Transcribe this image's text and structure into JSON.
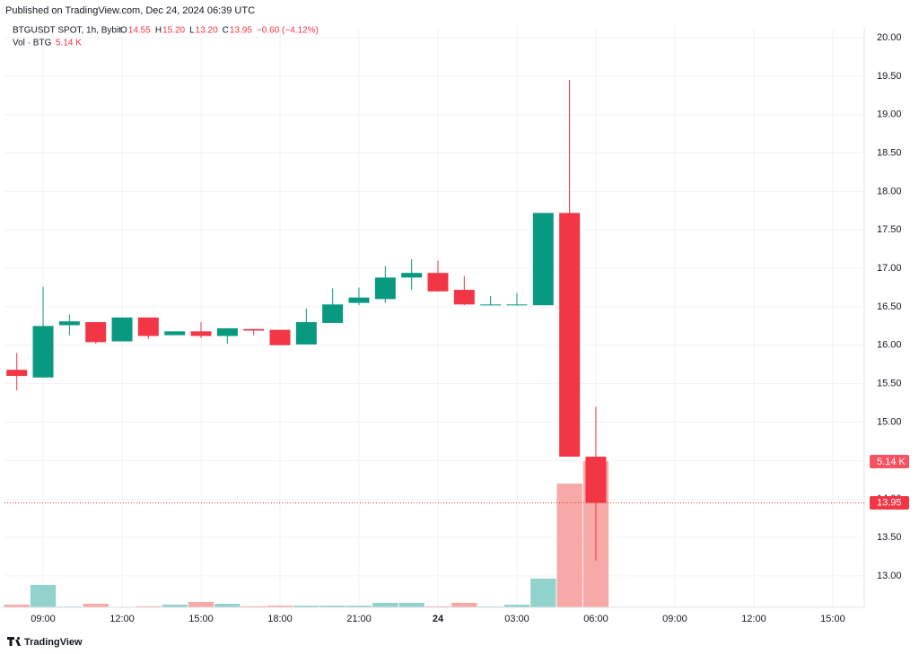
{
  "header": {
    "published": "Published on TradingView.com, Dec 24, 2024 06:39 UTC",
    "symbol": "BTGUSDT SPOT, 1h, Bybit",
    "ohlc": [
      {
        "label": "O",
        "value": "14.55"
      },
      {
        "label": "H",
        "value": "15.20"
      },
      {
        "label": "L",
        "value": "13.20"
      },
      {
        "label": "C",
        "value": "13.95"
      }
    ],
    "change": "−0.60 (−4.12%)",
    "volume_label": "Vol · BTG",
    "volume_value": "5.14 K"
  },
  "chart_data": {
    "type": "candlestick",
    "categories": [
      null,
      "09:00",
      null,
      null,
      "12:00",
      null,
      null,
      "15:00",
      null,
      null,
      "18:00",
      null,
      null,
      "21:00",
      null,
      null,
      "24",
      null,
      null,
      "03:00",
      null,
      null,
      "06:00",
      null,
      null,
      "09:00",
      null,
      null,
      "12:00",
      null,
      null,
      "15:00"
    ],
    "open": [
      15.68,
      15.58,
      16.26,
      16.3,
      16.05,
      16.36,
      16.13,
      16.18,
      16.12,
      16.21,
      16.2,
      16.01,
      16.29,
      16.55,
      16.6,
      16.88,
      16.94,
      16.72,
      16.52,
      16.52,
      16.52,
      17.72,
      14.55,
      null,
      null,
      null,
      null,
      null,
      null,
      null,
      null,
      null
    ],
    "high": [
      15.9,
      16.76,
      16.4,
      16.3,
      16.36,
      16.36,
      16.18,
      16.3,
      16.22,
      16.21,
      16.2,
      16.48,
      16.74,
      16.75,
      17.03,
      17.12,
      17.1,
      16.9,
      16.64,
      16.68,
      17.72,
      19.45,
      15.2,
      null,
      null,
      null,
      null,
      null,
      null,
      null,
      null,
      null
    ],
    "low": [
      15.41,
      15.58,
      16.13,
      16.02,
      16.05,
      16.08,
      16.13,
      16.09,
      16.02,
      16.13,
      16.0,
      16.01,
      16.29,
      16.52,
      16.55,
      16.72,
      16.7,
      16.52,
      16.52,
      16.52,
      16.52,
      14.55,
      13.2,
      null,
      null,
      null,
      null,
      null,
      null,
      null,
      null,
      null
    ],
    "close": [
      15.6,
      16.25,
      16.31,
      16.04,
      16.36,
      16.12,
      16.18,
      16.12,
      16.22,
      16.19,
      16.0,
      16.3,
      16.53,
      16.62,
      16.88,
      16.94,
      16.7,
      16.53,
      16.53,
      16.53,
      17.72,
      14.55,
      13.95,
      null,
      null,
      null,
      null,
      null,
      null,
      null,
      null,
      null
    ],
    "volume": [
      95,
      790,
      30,
      125,
      20,
      40,
      95,
      190,
      125,
      40,
      60,
      60,
      60,
      60,
      160,
      160,
      40,
      160,
      30,
      95,
      1010,
      4350,
      5140,
      null,
      null,
      null,
      null,
      null,
      null,
      null,
      null,
      null
    ],
    "up_color": "#089981",
    "down_color": "#f23645",
    "volume_up_color": "#92d2cc",
    "volume_down_color": "#f7a9a7",
    "ylim": [
      12.59,
      20.14
    ],
    "yticks": [
      {
        "value": 13,
        "label": "13.00"
      },
      {
        "value": 13.5,
        "label": "13.50"
      },
      {
        "value": 14,
        "label": "14.00"
      },
      {
        "value": 14.5,
        "label": "14.50"
      },
      {
        "value": 15,
        "label": "15.00"
      },
      {
        "value": 15.5,
        "label": "15.50"
      },
      {
        "value": 16,
        "label": "16.00"
      },
      {
        "value": 16.5,
        "label": "16.50"
      },
      {
        "value": 17,
        "label": "17.00"
      },
      {
        "value": 17.5,
        "label": "17.50"
      },
      {
        "value": 18,
        "label": "18.00"
      },
      {
        "value": 18.5,
        "label": "18.50"
      },
      {
        "value": 19,
        "label": "19.00"
      },
      {
        "value": 19.5,
        "label": "19.50"
      },
      {
        "value": 20,
        "label": "20.00"
      }
    ],
    "last_price": {
      "value": 13.95,
      "label": "13.95"
    },
    "grid": true
  },
  "footer": {
    "brand": "TradingView"
  }
}
